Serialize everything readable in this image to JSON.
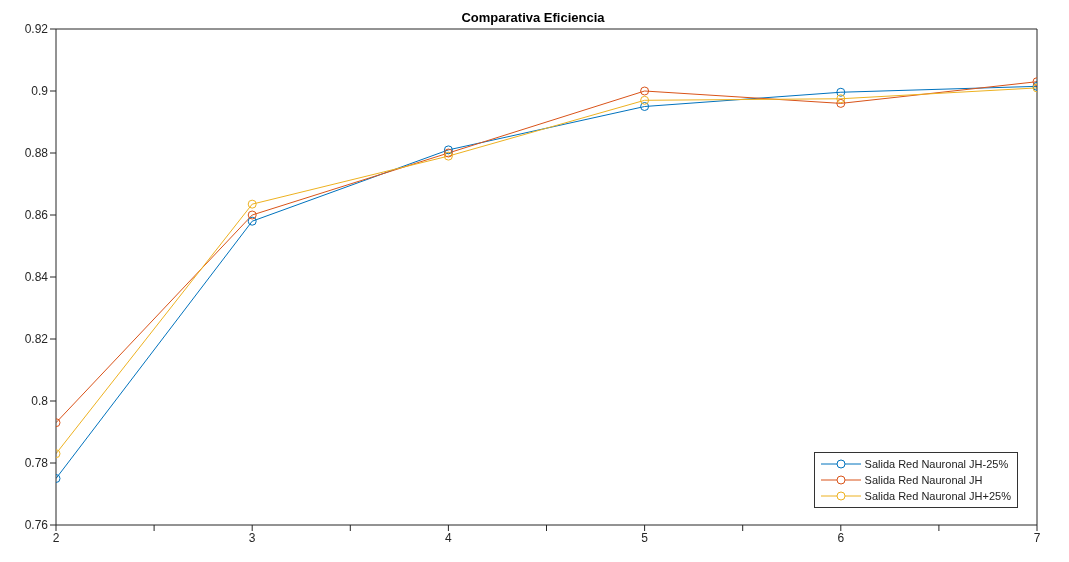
{
  "chart_data": {
    "type": "line",
    "title": "Comparativa Eficiencia",
    "x": [
      2,
      3,
      4,
      5,
      6,
      7
    ],
    "series": [
      {
        "name": "Salida Red Nauronal JH-25%",
        "color": "#0072bd",
        "values": [
          0.775,
          0.858,
          0.881,
          0.895,
          0.8996,
          0.9015
        ]
      },
      {
        "name": "Salida Red Nauronal JH",
        "color": "#d95319",
        "values": [
          0.793,
          0.86,
          0.88,
          0.9,
          0.896,
          0.903
        ]
      },
      {
        "name": "Salida Red Nauronal JH+25%",
        "color": "#edb120",
        "values": [
          0.783,
          0.8635,
          0.879,
          0.897,
          0.8975,
          0.901
        ]
      }
    ],
    "xlim": [
      2,
      7
    ],
    "xticks": [
      2,
      {
        "value": 2.5,
        "label": null
      },
      3,
      {
        "value": 3.5,
        "label": null
      },
      4,
      {
        "value": 4.5,
        "label": null
      },
      5,
      {
        "value": 5.5,
        "label": null
      },
      6,
      {
        "value": 6.5,
        "label": null
      },
      7
    ],
    "ylim": [
      0.76,
      0.92
    ],
    "yticks": [
      0.76,
      0.78,
      0.8,
      0.82,
      0.84,
      0.86,
      0.88,
      0.9,
      0.92
    ],
    "grid": false,
    "legend": "bottom right",
    "marker": "circle",
    "line_style": "solid"
  }
}
